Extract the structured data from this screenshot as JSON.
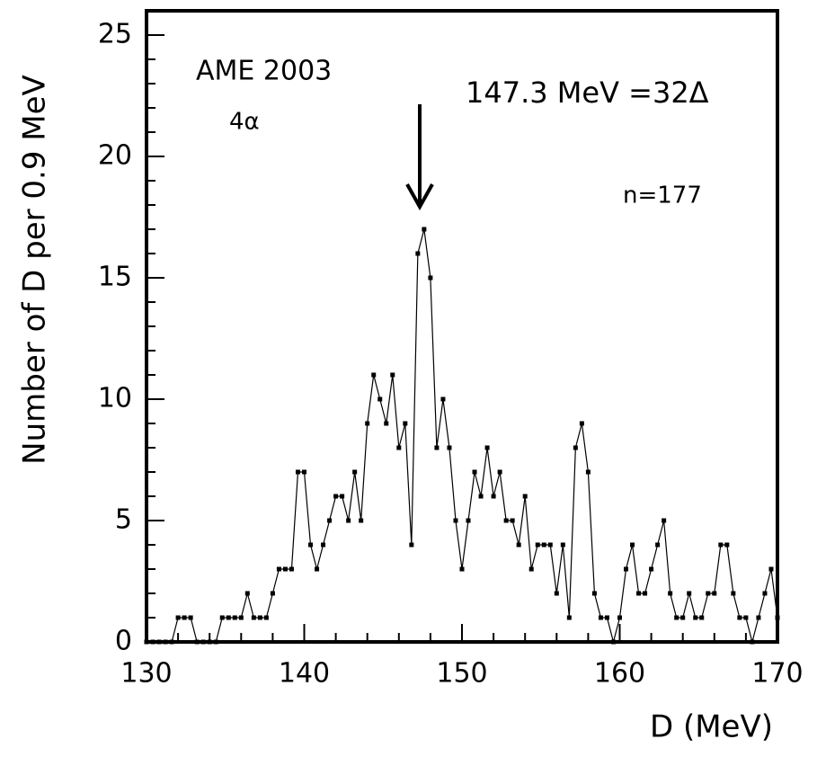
{
  "chart_data": {
    "type": "line",
    "xlabel": "D (MeV)",
    "ylabel": "Number of D per 0.9 MeV",
    "annotations": [
      "AME 2003",
      "4α",
      "147.3 MeV =32Δ",
      "n=177"
    ],
    "x": [
      130.0,
      130.4,
      130.8,
      131.2,
      131.6,
      132.0,
      132.4,
      132.8,
      133.2,
      133.6,
      134.0,
      134.4,
      134.8,
      135.2,
      135.6,
      136.0,
      136.4,
      136.8,
      137.2,
      137.6,
      138.0,
      138.4,
      138.8,
      139.2,
      139.6,
      140.0,
      140.4,
      140.8,
      141.2,
      141.6,
      142.0,
      142.4,
      142.8,
      143.2,
      143.6,
      144.0,
      144.4,
      144.8,
      145.2,
      145.6,
      146.0,
      146.4,
      146.8,
      147.2,
      147.6,
      148.0,
      148.4,
      148.8,
      149.2,
      149.6,
      150.0,
      150.4,
      150.8,
      151.2,
      151.6,
      152.0,
      152.4,
      152.8,
      153.2,
      153.6,
      154.0,
      154.4,
      154.8,
      155.2,
      155.6,
      156.0,
      156.4,
      156.8,
      157.2,
      157.6,
      158.0,
      158.4,
      158.8,
      159.2,
      159.6,
      160.0,
      160.4,
      160.8,
      161.2,
      161.6,
      162.0,
      162.4,
      162.8,
      163.2,
      163.6,
      164.0,
      164.4,
      164.8,
      165.2,
      165.6,
      166.0,
      166.4,
      166.8,
      167.2,
      167.6,
      168.0,
      168.4,
      168.8,
      169.2,
      169.6,
      170.0
    ],
    "values": [
      0,
      0,
      0,
      0,
      0,
      1,
      1,
      1,
      0,
      0,
      0,
      0,
      1,
      1,
      1,
      1,
      2,
      1,
      1,
      1,
      2,
      3,
      3,
      3,
      7,
      7,
      4,
      3,
      4,
      5,
      6,
      6,
      5,
      7,
      5,
      9,
      11,
      10,
      9,
      11,
      8,
      9,
      4,
      16,
      17,
      15,
      8,
      10,
      8,
      5,
      3,
      5,
      7,
      6,
      8,
      6,
      7,
      5,
      5,
      4,
      6,
      3,
      4,
      4,
      4,
      2,
      4,
      1,
      8,
      9,
      7,
      2,
      1,
      1,
      0,
      1,
      3,
      4,
      2,
      2,
      3,
      4,
      5,
      2,
      1,
      1,
      2,
      1,
      1,
      2,
      2,
      4,
      4,
      2,
      1,
      1,
      0,
      1,
      2,
      3,
      1
    ],
    "color": "#000000",
    "xlim": [
      130,
      170
    ],
    "xticks": [
      130,
      140,
      150,
      160,
      170
    ],
    "ylim": [
      0,
      26
    ],
    "yticks": [
      0,
      5,
      10,
      15,
      20,
      25
    ]
  }
}
